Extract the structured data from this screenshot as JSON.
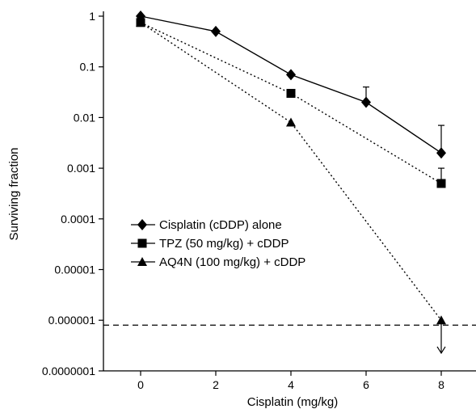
{
  "chart_data": {
    "type": "line",
    "title": "",
    "xlabel": "Cisplatin (mg/kg)",
    "ylabel": "Surviving fraction",
    "xlim": [
      -1,
      9
    ],
    "ylim": [
      1e-07,
      1
    ],
    "y_scale": "log",
    "x_ticks": [
      0,
      2,
      4,
      6,
      8
    ],
    "x_tick_labels": [
      "0",
      "2",
      "4",
      "6",
      "8"
    ],
    "y_ticks": [
      1,
      0.1,
      0.01,
      0.001,
      0.0001,
      1e-05,
      1e-06,
      1e-07
    ],
    "y_tick_labels": [
      "1",
      "0.1",
      "0.01",
      "0.001",
      "0.0001",
      "0.00001",
      "0.000001",
      "0.0000001"
    ],
    "grid": false,
    "legend_position": "center-left",
    "detection_limit": 8e-07,
    "series": [
      {
        "name": "Cisplatin (cDDP) alone",
        "marker": "diamond",
        "line_style": "solid",
        "x": [
          0,
          2,
          4,
          6,
          8
        ],
        "y": [
          1,
          0.5,
          0.07,
          0.02,
          0.002
        ],
        "error_upper": [
          null,
          null,
          null,
          0.04,
          0.007
        ]
      },
      {
        "name": "TPZ (50 mg/kg) + cDDP",
        "marker": "square",
        "line_style": "dotted",
        "x": [
          0,
          4,
          8
        ],
        "y": [
          0.75,
          0.03,
          0.0005
        ],
        "error_upper": [
          null,
          null,
          0.001
        ]
      },
      {
        "name": "AQ4N (100 mg/kg) + cDDP",
        "marker": "triangle",
        "line_style": "dotted",
        "x": [
          0,
          4,
          8
        ],
        "y": [
          0.75,
          0.008,
          1e-06
        ],
        "error_upper": [
          null,
          null,
          null
        ],
        "below_limit_arrow_at": 8
      }
    ],
    "colors": {
      "ink": "#000000",
      "background": "#ffffff"
    }
  }
}
